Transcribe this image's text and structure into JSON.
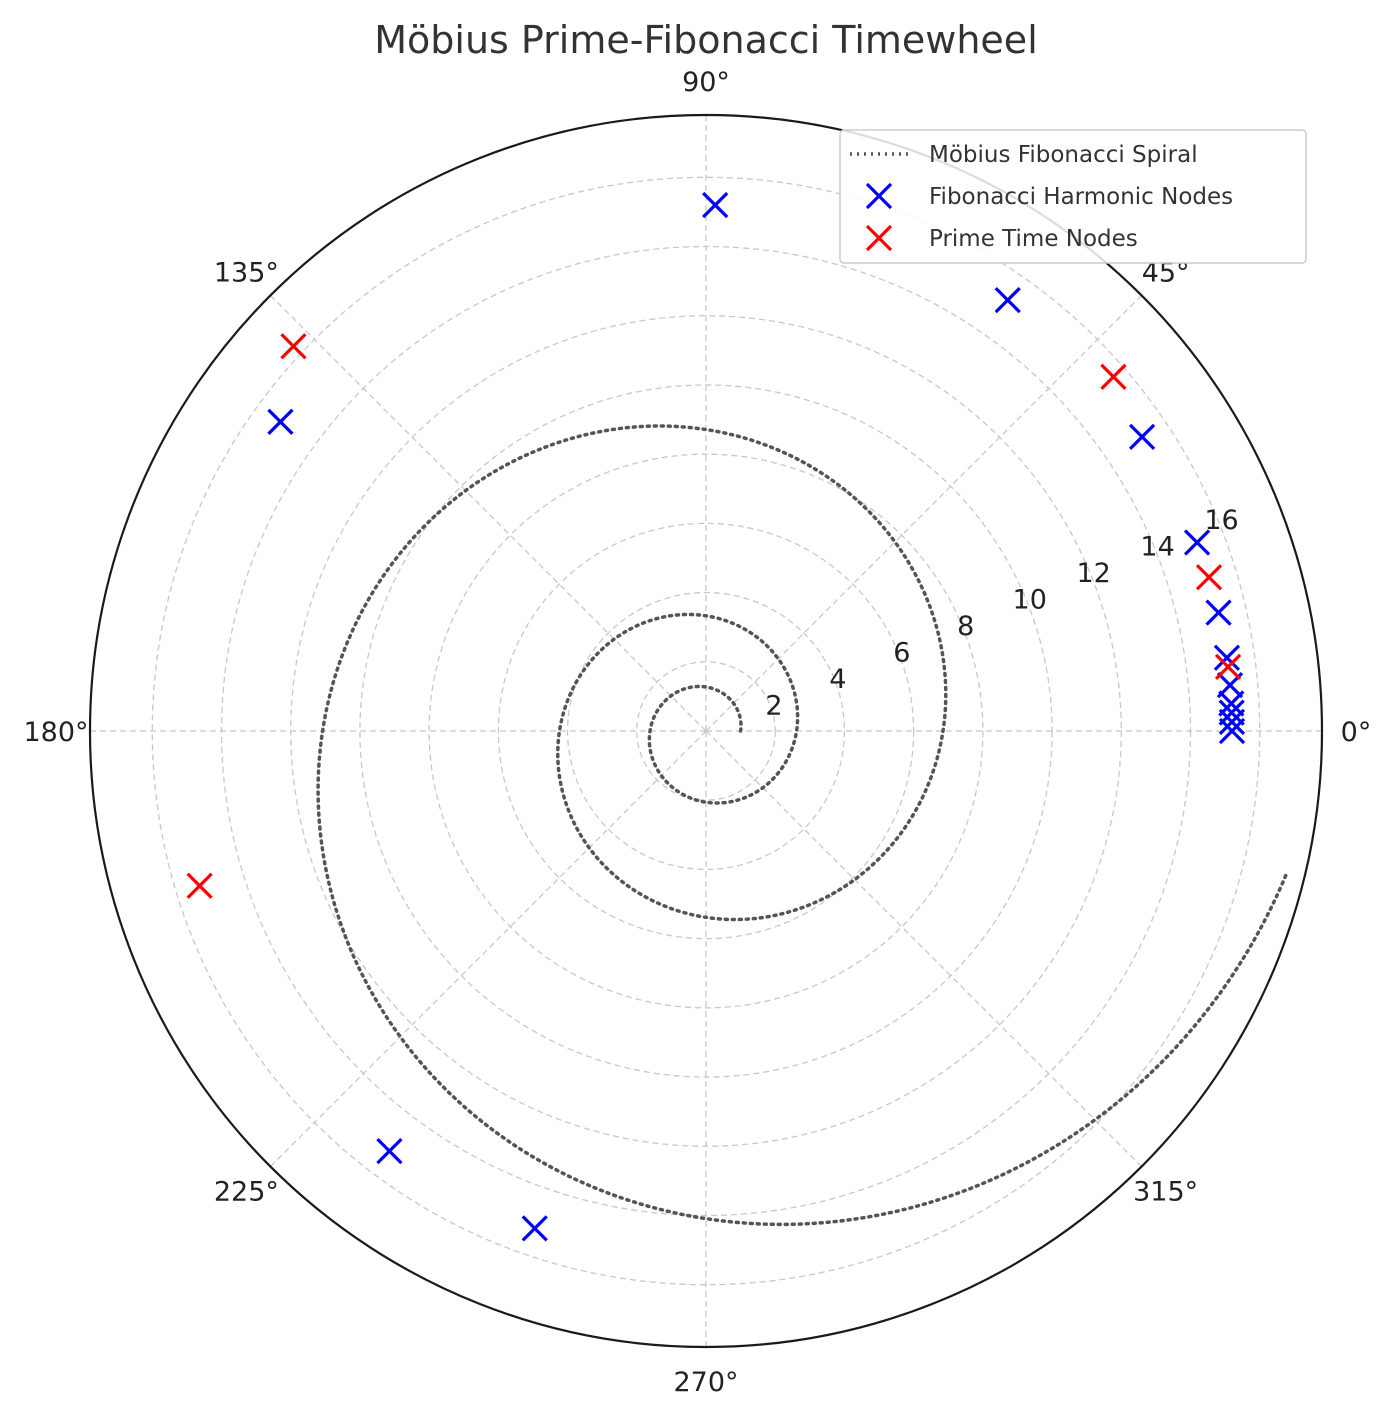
{
  "chart_data": {
    "type": "scatter",
    "projection": "polar",
    "title": "Möbius Prime-Fibonacci Timewheel",
    "rlim": [
      0,
      17.8
    ],
    "grid": true,
    "angle_ticks": [
      {
        "deg": 0,
        "label": "0°"
      },
      {
        "deg": 45,
        "label": "45°"
      },
      {
        "deg": 90,
        "label": "90°"
      },
      {
        "deg": 135,
        "label": "135°"
      },
      {
        "deg": 180,
        "label": "180°"
      },
      {
        "deg": 225,
        "label": "225°"
      },
      {
        "deg": 270,
        "label": "270°"
      },
      {
        "deg": 315,
        "label": "315°"
      }
    ],
    "radial_ticks": [
      {
        "r": 2,
        "label": "2"
      },
      {
        "r": 4,
        "label": "4"
      },
      {
        "r": 6,
        "label": "6"
      },
      {
        "r": 8,
        "label": "8"
      },
      {
        "r": 10,
        "label": "10"
      },
      {
        "r": 12,
        "label": "12"
      },
      {
        "r": 14,
        "label": "14"
      },
      {
        "r": 16,
        "label": "16"
      }
    ],
    "legend_position": "top-right",
    "series": [
      {
        "name": "Möbius Fibonacci Spiral",
        "kind": "line",
        "style": "dotted",
        "color": "#555555",
        "spiral": {
          "r0": 1.0,
          "growth_per_turn": 2.617,
          "theta_start_deg": 0,
          "theta_end_deg": 1066
        }
      },
      {
        "name": "Fibonacci Harmonic Nodes",
        "kind": "marker",
        "marker": "x",
        "color": "#0000ff",
        "points": [
          {
            "theta_deg": 0.0,
            "r": 15.2
          },
          {
            "theta_deg": 1.0,
            "r": 15.2
          },
          {
            "theta_deg": 2.0,
            "r": 15.2
          },
          {
            "theta_deg": 3.0,
            "r": 15.2
          },
          {
            "theta_deg": 5.0,
            "r": 15.2
          },
          {
            "theta_deg": 8.0,
            "r": 15.2
          },
          {
            "theta_deg": 13.0,
            "r": 15.2
          },
          {
            "theta_deg": 21.0,
            "r": 15.2
          },
          {
            "theta_deg": 34.0,
            "r": 15.2
          },
          {
            "theta_deg": 55.0,
            "r": 15.2
          },
          {
            "theta_deg": 89.0,
            "r": 15.2
          },
          {
            "theta_deg": 144.0,
            "r": 15.2
          },
          {
            "theta_deg": 233.0,
            "r": 15.2
          },
          {
            "theta_deg": 251.0,
            "r": 15.2
          }
        ]
      },
      {
        "name": "Prime Time Nodes",
        "kind": "marker",
        "marker": "x",
        "color": "#ff0000",
        "points": [
          {
            "theta_deg": 7.0,
            "r": 15.2
          },
          {
            "theta_deg": 17.0,
            "r": 15.2
          },
          {
            "theta_deg": 41.0,
            "r": 15.6
          },
          {
            "theta_deg": 137.0,
            "r": 16.3
          },
          {
            "theta_deg": 197.0,
            "r": 15.3
          }
        ]
      }
    ]
  }
}
